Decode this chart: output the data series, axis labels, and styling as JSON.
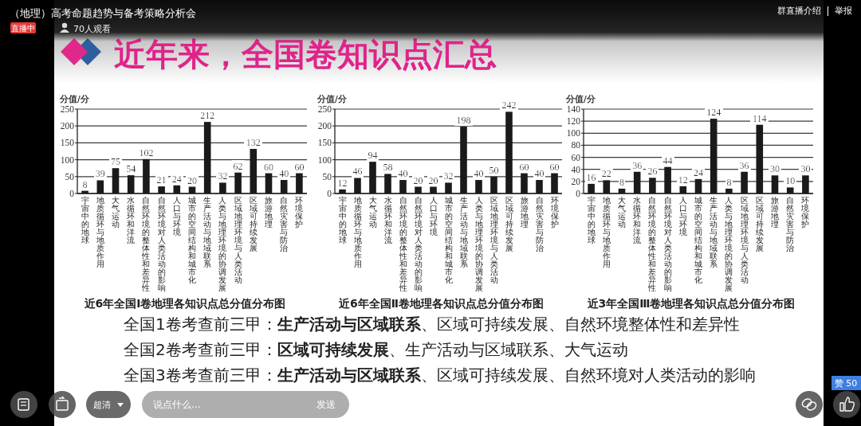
{
  "chart_data": [
    {
      "type": "other",
      "title": "（地理）高考命题趋势与备考策略分析会",
      "annotations": [
        "直播中",
        "70人观看",
        "群直播介绍",
        "举报",
        "超清",
        "说点什么...",
        "发送",
        "赞 50"
      ]
    },
    {
      "type": "other",
      "title": "近年来，全国卷知识点汇总"
    },
    {
      "type": "bar",
      "title": "近6年全国Ⅰ卷地理各知识点总分值分布图",
      "ylabel": "分值/分",
      "categories": [
        "宇宙中的地球",
        "地质循环与地质作用",
        "大气运动",
        "水循环和洋流",
        "自然环境的整体性和差异性",
        "自然环境对人类活动的影响",
        "人口与环境",
        "城市的空间结构和城市化",
        "生产活动与地域联系",
        "人类与地理环境的协调发展",
        "区域地理环境与人类活动",
        "区域可持续发展",
        "旅游地理",
        "自然灾害与防治",
        "环境保护"
      ],
      "values": [
        8,
        39,
        75,
        54,
        102,
        21,
        24,
        20,
        212,
        32,
        62,
        132,
        60,
        40,
        60
      ],
      "color": "#1a1a1a",
      "ylim": [
        0,
        250
      ],
      "yticks": [
        0,
        50,
        100,
        150,
        200,
        250
      ],
      "grid": "y",
      "data_labels": true
    },
    {
      "type": "bar",
      "title": "近6年全国Ⅱ卷地理各知识点总分值分布图",
      "ylabel": "分值/分",
      "categories": [
        "宇宙中的地球",
        "地质循环与地质作用",
        "大气运动",
        "水循环和洋流",
        "自然环境的整体性和差异性",
        "自然环境对人类活动的影响",
        "人口与环境",
        "城市的空间结构和城市化",
        "生产活动与地域联系",
        "人类与地理环境的协调发展",
        "区域地理环境与人类活动",
        "区域可持续发展",
        "旅游地理",
        "自然灾害与防治",
        "环境保护"
      ],
      "values": [
        12,
        46,
        94,
        58,
        40,
        20,
        20,
        32,
        198,
        40,
        50,
        242,
        60,
        40,
        60
      ],
      "color": "#1a1a1a",
      "ylim": [
        0,
        250
      ],
      "yticks": [
        0,
        50,
        100,
        150,
        200,
        250
      ],
      "grid": "y",
      "data_labels": true
    },
    {
      "type": "bar",
      "title": "近3年全国Ⅲ卷地理各知识点总分值分布图",
      "ylabel": "分值/分",
      "categories": [
        "宇宙中的地球",
        "地质循环与地质作用",
        "大气运动",
        "水循环和洋流",
        "自然环境的整体性和差异性",
        "自然环境对人类活动的影响",
        "人口与环境",
        "城市的空间结构和城市化",
        "生产活动与地域联系",
        "人类与地理环境的协调发展",
        "区域地理环境与人类活动",
        "区域可持续发展",
        "旅游地理",
        "自然灾害与防治",
        "环境保护"
      ],
      "values": [
        16,
        22,
        8,
        36,
        26,
        44,
        12,
        24,
        124,
        8,
        36,
        114,
        30,
        10,
        30
      ],
      "color": "#1a1a1a",
      "ylim": [
        0,
        140
      ],
      "yticks": [
        0,
        20,
        40,
        60,
        80,
        100,
        120,
        140
      ],
      "grid": "y",
      "data_labels": true
    },
    {
      "type": "other",
      "annotations": [
        "全国1卷考查前三甲：生产活动与区域联系、区域可持续发展、自然环境整体性和差异性",
        "全国2卷考查前三甲：区域可持续发展、生产活动与区域联系、大气运动",
        "全国3卷考查前三甲：生产活动与区域联系、区域可持续发展、自然环境对人类活动的影响"
      ]
    }
  ]
}
